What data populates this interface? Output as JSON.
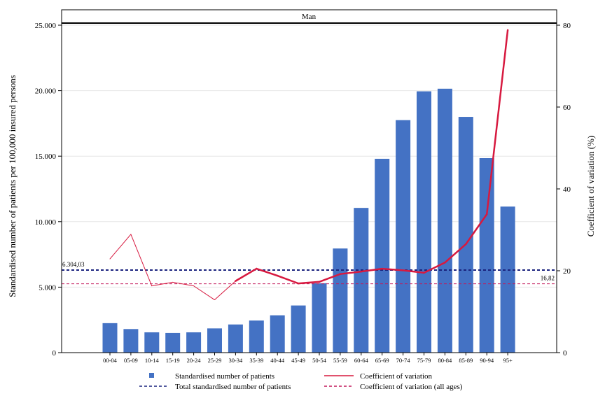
{
  "chart_data": {
    "type": "bar",
    "panel_title": "Man",
    "categories": [
      "00-04",
      "05-09",
      "10-14",
      "15-19",
      "20-24",
      "25-29",
      "30-34",
      "35-39",
      "40-44",
      "45-49",
      "50-54",
      "55-59",
      "60-64",
      "65-69",
      "70-74",
      "75-79",
      "80-84",
      "85-89",
      "90-94",
      "95+"
    ],
    "y_left": {
      "label": "Standardised number of patients per 100,000 insured persons",
      "range": [
        0,
        25000
      ],
      "ticks": [
        0,
        5000,
        10000,
        15000,
        20000,
        25000
      ],
      "tick_labels": [
        "0",
        "5.000",
        "10.000",
        "15.000",
        "20.000",
        "25.000"
      ]
    },
    "y_right": {
      "label": "Coefficient of variation (%)",
      "range": [
        0,
        80
      ],
      "ticks": [
        0,
        20,
        40,
        60,
        80
      ],
      "tick_labels": [
        "0",
        "20",
        "40",
        "60",
        "80"
      ]
    },
    "series": [
      {
        "name": "Standardised number of patients",
        "type": "bar",
        "axis": "left",
        "color": "#4472c4",
        "values": [
          2250,
          1800,
          1550,
          1500,
          1550,
          1850,
          2150,
          2450,
          2850,
          3600,
          5300,
          7950,
          11050,
          14800,
          17750,
          19950,
          20150,
          18000,
          14850,
          11150
        ]
      },
      {
        "name": "Coefficient of variation",
        "type": "line",
        "axis": "right",
        "color": "#d7193f",
        "values": [
          22.9,
          28.9,
          16.3,
          17.2,
          16.3,
          12.9,
          17.5,
          20.5,
          18.8,
          16.9,
          17.3,
          19.2,
          19.8,
          20.5,
          20.1,
          19.5,
          22.0,
          26.5,
          33.8,
          78.8
        ]
      },
      {
        "name": "Total standardised number of patients",
        "type": "hline",
        "axis": "left",
        "color": "#1a237e",
        "value": 6304.03,
        "value_label": "6.304,03"
      },
      {
        "name": "Coefficient of variation (all ages)",
        "type": "hline",
        "axis": "right",
        "color": "#c2185b",
        "value": 16.82,
        "value_label": "16,82"
      }
    ],
    "legend": {
      "position": "bottom",
      "items": [
        {
          "label": "Standardised number of patients",
          "symbol": "square",
          "color": "#4472c4"
        },
        {
          "label": "Coefficient of variation",
          "symbol": "line",
          "color": "#d7193f"
        },
        {
          "label": "Total standardised number of patients",
          "symbol": "dash",
          "color": "#1a237e"
        },
        {
          "label": "Coefficient of variation (all ages)",
          "symbol": "dash",
          "color": "#c2185b"
        }
      ]
    },
    "grid": true
  }
}
